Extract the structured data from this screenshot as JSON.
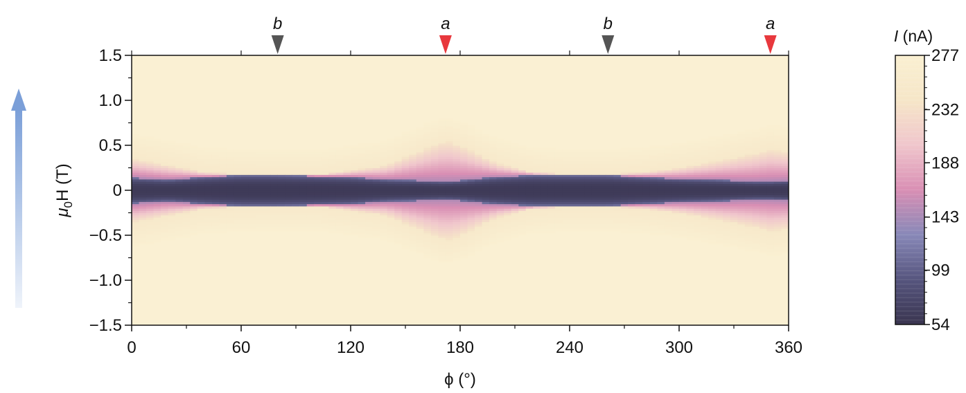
{
  "chart_data": {
    "type": "heatmap",
    "title": "",
    "xlabel": "ϕ (°)",
    "ylabel_parts": {
      "symbol": "μ",
      "subscript": "0",
      "rest": "H (T)"
    },
    "xlim": [
      0,
      360
    ],
    "ylim": [
      -1.5,
      1.5
    ],
    "x_ticks": [
      0,
      60,
      120,
      180,
      240,
      300,
      360
    ],
    "x_tick_labels": [
      "0",
      "60",
      "120",
      "180",
      "240",
      "300",
      "360"
    ],
    "y_ticks": [
      1.5,
      1.0,
      0.5,
      0,
      -0.5,
      -1.0,
      -1.5
    ],
    "y_tick_labels": [
      "1.5",
      "1.0",
      "0.5",
      "0",
      "−0.5",
      "−1.0",
      "−1.5"
    ],
    "markers": [
      {
        "label": "b",
        "x": 80,
        "color": "#555555"
      },
      {
        "label": "a",
        "x": 172,
        "color": "#e8383d"
      },
      {
        "label": "b",
        "x": 261,
        "color": "#555555"
      },
      {
        "label": "a",
        "x": 350,
        "color": "#e8383d"
      }
    ],
    "colorbar": {
      "label": "I (nA)",
      "label_symbol": "I",
      "label_unit": "(nA)",
      "min": 54,
      "max": 277,
      "ticks": [
        277,
        232,
        188,
        143,
        99,
        54
      ],
      "tick_labels": [
        "277",
        "232",
        "188",
        "143",
        "99",
        "54"
      ],
      "colors": [
        "#3a3550",
        "#56557e",
        "#8888b8",
        "#d98fb4",
        "#f0c6cc",
        "#f6e6c8",
        "#faf0d2"
      ]
    },
    "band_halfwidth_T": {
      "phi": [
        0,
        20,
        40,
        60,
        80,
        100,
        120,
        140,
        160,
        172,
        180,
        200,
        220,
        240,
        261,
        280,
        300,
        320,
        340,
        350,
        360
      ],
      "values": [
        0.14,
        0.12,
        0.15,
        0.17,
        0.17,
        0.16,
        0.15,
        0.12,
        0.11,
        0.1,
        0.11,
        0.15,
        0.17,
        0.17,
        0.17,
        0.15,
        0.13,
        0.12,
        0.1,
        0.1,
        0.11
      ]
    },
    "pink_halfwidth_T": {
      "phi": [
        0,
        20,
        40,
        60,
        80,
        100,
        120,
        140,
        160,
        172,
        180,
        200,
        220,
        240,
        261,
        280,
        300,
        320,
        340,
        350,
        360
      ],
      "values": [
        0.35,
        0.28,
        0.2,
        0.18,
        0.17,
        0.17,
        0.22,
        0.28,
        0.45,
        0.55,
        0.5,
        0.3,
        0.2,
        0.18,
        0.18,
        0.2,
        0.25,
        0.32,
        0.4,
        0.45,
        0.42
      ]
    },
    "field_arrow": {
      "direction": "up",
      "color": "#7b9fd8"
    },
    "grid": false,
    "legend": "colorbar-right"
  }
}
